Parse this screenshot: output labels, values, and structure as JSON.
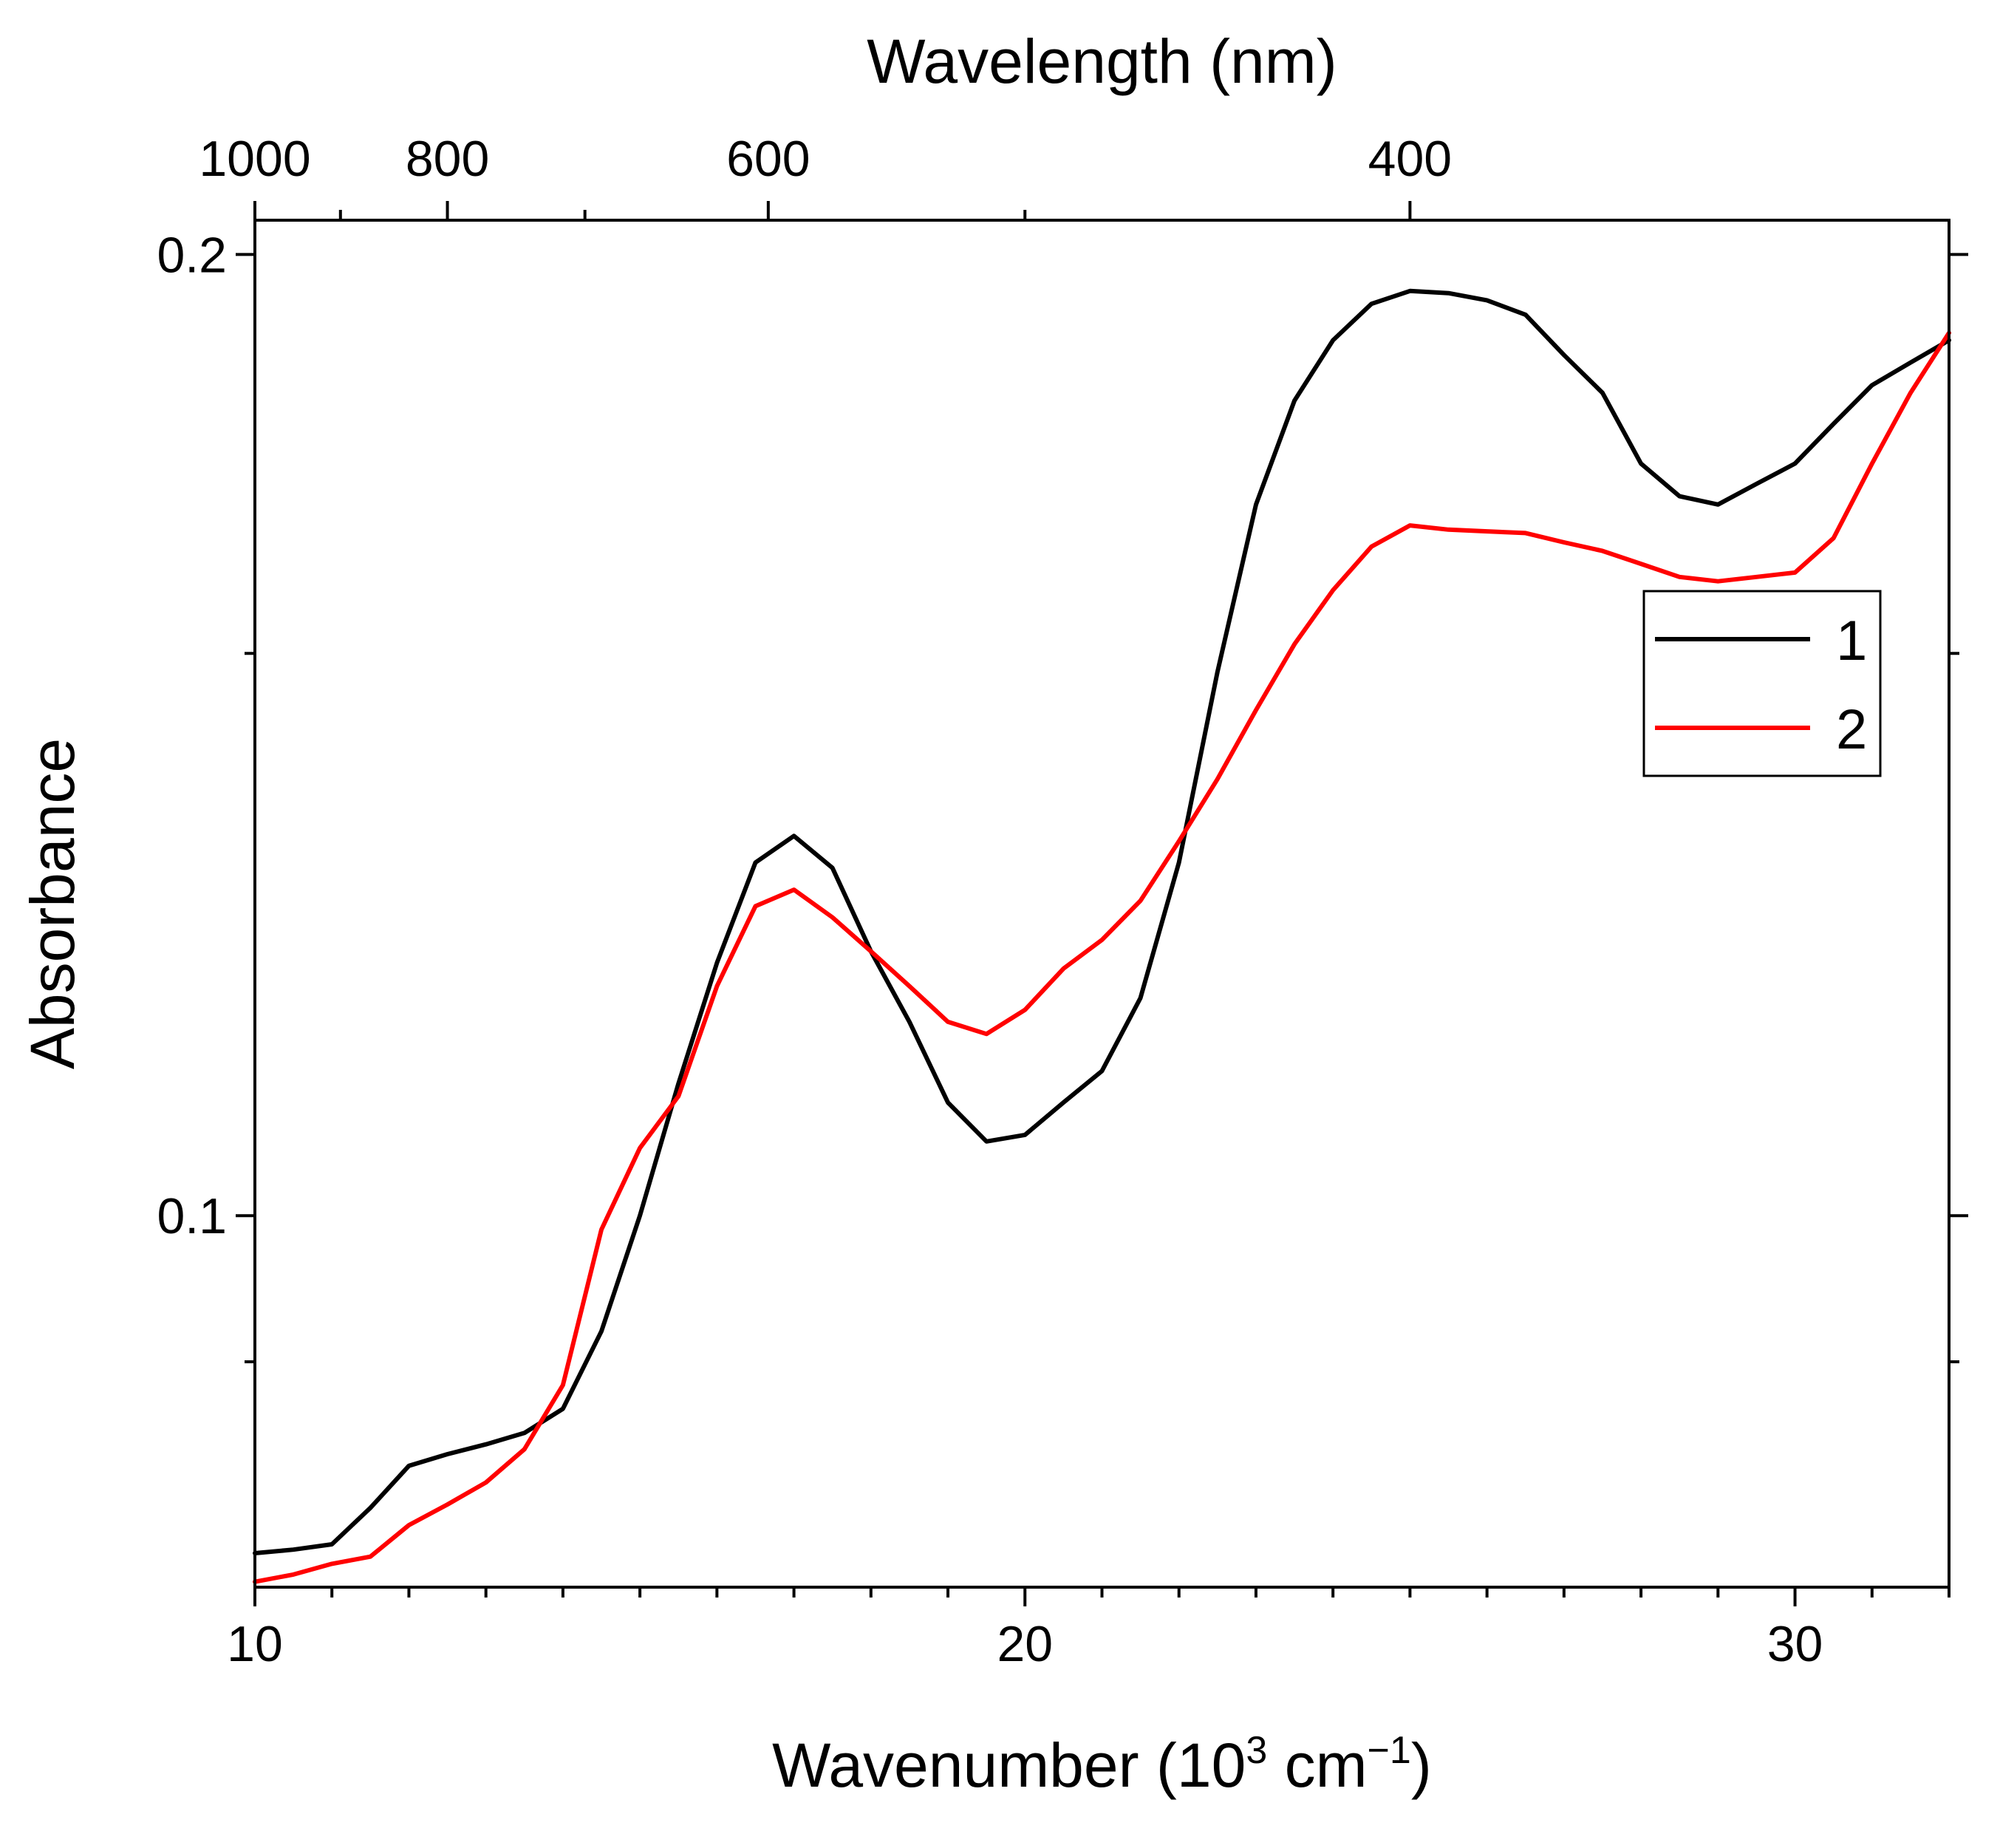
{
  "chart_data": {
    "type": "line",
    "title": "",
    "xlabel": "Wavenumber (10",
    "xlabel_sup": "3",
    "xlabel_mid": " cm",
    "xlabel_sup2": "−1",
    "xlabel_end": ")",
    "x2label": "Wavelength (nm)",
    "ylabel": "Absorbance",
    "y_scale": "log",
    "xlim": [
      10,
      32
    ],
    "ylim": [
      0.0765,
      0.205
    ],
    "x_major_ticks": [
      10,
      20,
      30
    ],
    "x_major_tick_labels": [
      "10",
      "20",
      "30"
    ],
    "x_minor_ticks": [
      11,
      12,
      13,
      14,
      15,
      16,
      17,
      18,
      19,
      21,
      22,
      23,
      24,
      25,
      26,
      27,
      28,
      29,
      31,
      32
    ],
    "y_major_ticks": [
      0.1,
      0.2
    ],
    "y_major_tick_labels": [
      "0.1",
      "0.2"
    ],
    "y_minor_ticks": [
      0.09,
      0.15
    ],
    "top_major_ticks_nm": [
      1000,
      800,
      600,
      400
    ],
    "top_major_tick_labels": [
      "1000",
      "800",
      "600",
      "400"
    ],
    "top_minor_ticks_nm": [
      900,
      700,
      500
    ],
    "series": [
      {
        "name": "1",
        "color": "#000000",
        "x": [
          10.0,
          10.5,
          11.0,
          11.5,
          12.0,
          12.5,
          13.0,
          13.5,
          14.0,
          14.5,
          15.0,
          15.5,
          16.0,
          16.5,
          17.0,
          17.5,
          18.0,
          18.5,
          19.0,
          19.5,
          20.0,
          20.5,
          21.0,
          21.5,
          22.0,
          22.5,
          23.0,
          23.5,
          24.0,
          24.5,
          25.0,
          25.5,
          26.0,
          26.5,
          27.0,
          27.5,
          28.0,
          28.5,
          29.0,
          29.5,
          30.0,
          30.5,
          31.0,
          31.5,
          32.0
        ],
        "y": [
          0.0784,
          0.0786,
          0.0789,
          0.081,
          0.0835,
          0.0842,
          0.0848,
          0.0855,
          0.087,
          0.092,
          0.1,
          0.11,
          0.12,
          0.129,
          0.1315,
          0.1285,
          0.121,
          0.115,
          0.1085,
          0.1055,
          0.106,
          0.1085,
          0.111,
          0.117,
          0.129,
          0.148,
          0.167,
          0.18,
          0.188,
          0.193,
          0.1948,
          0.1945,
          0.1935,
          0.1915,
          0.186,
          0.181,
          0.172,
          0.168,
          0.167,
          0.1695,
          0.172,
          0.177,
          0.182,
          0.185,
          0.188
        ]
      },
      {
        "name": "2",
        "color": "#ff0000",
        "x": [
          10.0,
          10.5,
          11.0,
          11.5,
          12.0,
          12.5,
          13.0,
          13.5,
          14.0,
          14.5,
          15.0,
          15.5,
          16.0,
          16.5,
          17.0,
          17.5,
          18.0,
          18.5,
          19.0,
          19.5,
          20.0,
          20.5,
          21.0,
          21.5,
          22.0,
          22.5,
          23.0,
          23.5,
          24.0,
          24.5,
          25.0,
          25.5,
          26.0,
          26.5,
          27.0,
          27.5,
          28.0,
          28.5,
          29.0,
          29.5,
          30.0,
          30.5,
          31.0,
          31.5,
          32.0
        ],
        "y": [
          0.0768,
          0.0772,
          0.0778,
          0.0782,
          0.08,
          0.0812,
          0.0825,
          0.0845,
          0.0885,
          0.099,
          0.105,
          0.109,
          0.118,
          0.125,
          0.1265,
          0.124,
          0.121,
          0.118,
          0.115,
          0.114,
          0.116,
          0.1195,
          0.122,
          0.1255,
          0.131,
          0.137,
          0.144,
          0.151,
          0.157,
          0.162,
          0.1645,
          0.164,
          0.1638,
          0.1636,
          0.1625,
          0.1615,
          0.16,
          0.1585,
          0.158,
          0.1585,
          0.159,
          0.163,
          0.172,
          0.181,
          0.189
        ]
      }
    ],
    "legend": {
      "position": "right",
      "entries": [
        "1",
        "2"
      ]
    }
  }
}
